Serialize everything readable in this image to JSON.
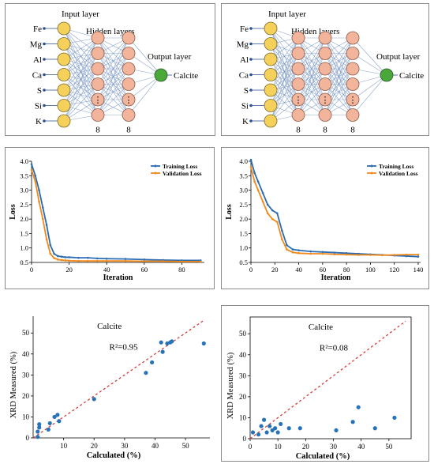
{
  "networks": [
    {
      "inputs": [
        "Fe",
        "Mg",
        "Al",
        "Ca",
        "S",
        "Si",
        "K"
      ],
      "input_title": "Input layer",
      "hidden_title": "Hidden layers",
      "output_title": "Output layer",
      "output_label": "Calcite",
      "hidden_sizes": [
        "8",
        "8"
      ],
      "ellipsis": "⋮"
    },
    {
      "inputs": [
        "Fe",
        "Mg",
        "Al",
        "Ca",
        "S",
        "Si",
        "K"
      ],
      "input_title": "Input layer",
      "hidden_title": "Hidden layers",
      "output_title": "Output layer",
      "output_label": "Calcite",
      "hidden_sizes": [
        "8",
        "8",
        "8"
      ],
      "ellipsis": "⋮"
    }
  ],
  "colors": {
    "input_node": "#f5d05a",
    "hidden_node": "#f2b49a",
    "output_node": "#4aa83a",
    "edge": "#6f8fc0",
    "training": "#2b6cb0",
    "validation": "#f08a1c",
    "scatter": "#2673b8",
    "fit": "#d63a3a"
  },
  "chart_data": [
    {
      "type": "line",
      "xlabel": "Iteration",
      "ylabel": "Loss",
      "xlim": [
        0,
        92
      ],
      "ylim": [
        0.5,
        4.0
      ],
      "xticks": [
        "0",
        "20",
        "40",
        "60",
        "80"
      ],
      "yticks": [
        "0.5",
        "1.0",
        "1.5",
        "2.0",
        "2.5",
        "3.0",
        "3.5",
        "4.0"
      ],
      "legend_position": "top-right",
      "series": [
        {
          "name": "Training Loss",
          "x": [
            0,
            2,
            4,
            6,
            8,
            10,
            12,
            14,
            16,
            18,
            20,
            25,
            30,
            35,
            40,
            50,
            60,
            70,
            80,
            90
          ],
          "y": [
            3.9,
            3.5,
            3.0,
            2.4,
            1.8,
            1.1,
            0.8,
            0.72,
            0.7,
            0.68,
            0.68,
            0.66,
            0.66,
            0.64,
            0.63,
            0.62,
            0.6,
            0.58,
            0.57,
            0.57
          ]
        },
        {
          "name": "Validation Loss",
          "x": [
            0,
            2,
            4,
            6,
            8,
            10,
            12,
            14,
            16,
            18,
            20,
            25,
            30,
            35,
            40,
            50,
            60,
            70,
            80,
            90
          ],
          "y": [
            3.7,
            3.3,
            2.6,
            2.0,
            1.3,
            0.8,
            0.65,
            0.6,
            0.58,
            0.57,
            0.56,
            0.55,
            0.55,
            0.55,
            0.55,
            0.55,
            0.54,
            0.54,
            0.53,
            0.53
          ]
        }
      ]
    },
    {
      "type": "line",
      "xlabel": "Iteration",
      "ylabel": "Loss",
      "xlim": [
        0,
        142
      ],
      "ylim": [
        0.5,
        4.0
      ],
      "xticks": [
        "0",
        "20",
        "40",
        "60",
        "80",
        "100",
        "120",
        "140"
      ],
      "yticks": [
        "0.5",
        "1.0",
        "1.5",
        "2.0",
        "2.5",
        "3.0",
        "3.5",
        "4.0"
      ],
      "legend_position": "top-right",
      "series": [
        {
          "name": "Training Loss",
          "x": [
            0,
            3,
            6,
            10,
            14,
            18,
            22,
            26,
            30,
            35,
            40,
            50,
            60,
            70,
            80,
            90,
            100,
            110,
            120,
            130,
            140
          ],
          "y": [
            4.05,
            3.6,
            3.3,
            2.9,
            2.5,
            2.3,
            2.2,
            1.6,
            1.1,
            0.95,
            0.92,
            0.88,
            0.86,
            0.84,
            0.82,
            0.8,
            0.78,
            0.76,
            0.74,
            0.72,
            0.7
          ]
        },
        {
          "name": "Validation Loss",
          "x": [
            0,
            3,
            6,
            10,
            14,
            18,
            22,
            26,
            30,
            35,
            40,
            50,
            60,
            70,
            80,
            90,
            100,
            110,
            120,
            130,
            140
          ],
          "y": [
            3.8,
            3.3,
            3.0,
            2.6,
            2.2,
            2.0,
            1.9,
            1.3,
            0.95,
            0.85,
            0.82,
            0.8,
            0.8,
            0.78,
            0.77,
            0.76,
            0.76,
            0.75,
            0.76,
            0.77,
            0.77
          ]
        }
      ]
    },
    {
      "type": "scatter",
      "title": "Calcite",
      "annotation": "R²=0.95",
      "xlabel": "Calculated (%)",
      "ylabel": "XRD Measured (%)",
      "xlim": [
        0,
        58
      ],
      "ylim": [
        0,
        58
      ],
      "xticks": [
        "10",
        "20",
        "30",
        "40",
        "50"
      ],
      "yticks": [
        "0",
        "10",
        "20",
        "30",
        "40",
        "50"
      ],
      "x": [
        1.5,
        1.5,
        2,
        2,
        5,
        5.5,
        7,
        8,
        8.5,
        20,
        37,
        39,
        42,
        42.5,
        44,
        45,
        45.5,
        56
      ],
      "y": [
        0.5,
        3,
        5,
        6.5,
        4,
        7,
        10,
        11,
        8,
        18.5,
        31,
        36,
        45.5,
        41,
        45,
        45.5,
        46,
        45
      ]
    },
    {
      "type": "scatter",
      "title": "Calcite",
      "annotation": "R²=0.08",
      "xlabel": "Calculated (%)",
      "ylabel": "XRD Measured (%)",
      "xlim": [
        0,
        58
      ],
      "ylim": [
        0,
        58
      ],
      "xticks": [
        "0",
        "10",
        "20",
        "30",
        "40",
        "50"
      ],
      "yticks": [
        "0",
        "10",
        "20",
        "30",
        "40",
        "50"
      ],
      "x": [
        1,
        3,
        4,
        5,
        6,
        7,
        8,
        9,
        10,
        11,
        14,
        18,
        31,
        37,
        39,
        45,
        52
      ],
      "y": [
        3,
        2,
        6,
        9,
        3,
        6,
        4,
        5,
        3,
        7,
        5,
        5,
        4,
        8,
        15,
        5,
        10
      ]
    }
  ]
}
